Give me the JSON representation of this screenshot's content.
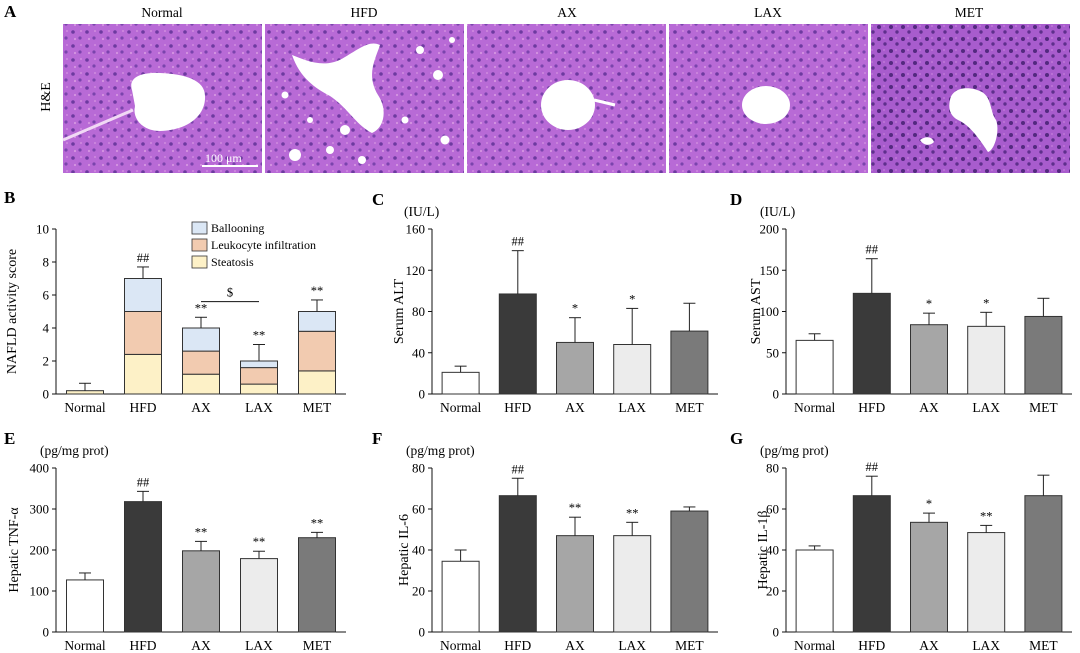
{
  "figure": {
    "panel_A": {
      "letter": "A",
      "row_label": "H&E",
      "scale_bar": "100 μm",
      "images": [
        {
          "label": "Normal"
        },
        {
          "label": "HFD"
        },
        {
          "label": "AX"
        },
        {
          "label": "LAX"
        },
        {
          "label": "MET"
        }
      ]
    }
  },
  "chart_data": [
    {
      "panel": "B",
      "type": "bar",
      "stacked": true,
      "ylabel": "NAFLD activity score",
      "unit": "",
      "ylim": [
        0,
        10
      ],
      "yticks": [
        0,
        2,
        4,
        6,
        8,
        10
      ],
      "categories": [
        "Normal",
        "HFD",
        "AX",
        "LAX",
        "MET"
      ],
      "series": [
        {
          "name": "Steatosis",
          "color": "#fdf1c7",
          "values": [
            0.2,
            2.4,
            1.2,
            0.6,
            1.4
          ]
        },
        {
          "name": "Leukocyte infiltration",
          "color": "#f2cbb0",
          "values": [
            0,
            2.6,
            1.4,
            1.0,
            2.4
          ]
        },
        {
          "name": "Ballooning",
          "color": "#dbe7f5",
          "values": [
            0,
            2.0,
            1.4,
            0.4,
            1.2
          ]
        }
      ],
      "errors": [
        0.45,
        0.7,
        0.65,
        1.0,
        0.7
      ],
      "sig_labels": [
        "",
        "##",
        "**",
        "**",
        "**"
      ],
      "bracket": {
        "from": 2,
        "to": 3,
        "label": "$"
      }
    },
    {
      "panel": "C",
      "type": "bar",
      "ylabel": "Serum ALT",
      "unit": "(IU/L)",
      "ylim": [
        0,
        160
      ],
      "yticks": [
        0,
        40,
        80,
        120,
        160
      ],
      "categories": [
        "Normal",
        "HFD",
        "AX",
        "LAX",
        "MET"
      ],
      "values": [
        21,
        97,
        50,
        48,
        61
      ],
      "errors": [
        6,
        42,
        24,
        35,
        27
      ],
      "colors": [
        "#ffffff",
        "#3a3a3a",
        "#a6a6a6",
        "#ececec",
        "#7a7a7a"
      ],
      "sig_labels": [
        "",
        "##",
        "*",
        "*",
        ""
      ]
    },
    {
      "panel": "D",
      "type": "bar",
      "ylabel": "Serum AST",
      "unit": "(IU/L)",
      "ylim": [
        0,
        200
      ],
      "yticks": [
        0,
        50,
        100,
        150,
        200
      ],
      "categories": [
        "Normal",
        "HFD",
        "AX",
        "LAX",
        "MET"
      ],
      "values": [
        65,
        122,
        84,
        82,
        94
      ],
      "errors": [
        8,
        42,
        14,
        17,
        22
      ],
      "colors": [
        "#ffffff",
        "#3a3a3a",
        "#a6a6a6",
        "#ececec",
        "#7a7a7a"
      ],
      "sig_labels": [
        "",
        "##",
        "*",
        "*",
        ""
      ]
    },
    {
      "panel": "E",
      "type": "bar",
      "ylabel": "Hepatic TNF-α",
      "unit": "(pg/mg prot)",
      "ylim": [
        0,
        400
      ],
      "yticks": [
        0,
        100,
        200,
        300,
        400
      ],
      "categories": [
        "Normal",
        "HFD",
        "AX",
        "LAX",
        "MET"
      ],
      "values": [
        127,
        318,
        198,
        179,
        230
      ],
      "errors": [
        17,
        25,
        23,
        18,
        13
      ],
      "colors": [
        "#ffffff",
        "#3a3a3a",
        "#a6a6a6",
        "#ececec",
        "#7a7a7a"
      ],
      "sig_labels": [
        "",
        "##",
        "**",
        "**",
        "**"
      ]
    },
    {
      "panel": "F",
      "type": "bar",
      "ylabel": "Hepatic IL-6",
      "unit": "(pg/mg prot)",
      "ylim": [
        0,
        80
      ],
      "yticks": [
        0,
        20,
        40,
        60,
        80
      ],
      "categories": [
        "Normal",
        "HFD",
        "AX",
        "LAX",
        "MET"
      ],
      "values": [
        34.5,
        66.5,
        47,
        47,
        59
      ],
      "errors": [
        5.5,
        8.5,
        9,
        6.5,
        2
      ],
      "colors": [
        "#ffffff",
        "#3a3a3a",
        "#a6a6a6",
        "#ececec",
        "#7a7a7a"
      ],
      "sig_labels": [
        "",
        "##",
        "**",
        "**",
        ""
      ]
    },
    {
      "panel": "G",
      "type": "bar",
      "ylabel": "Hepatic IL-1β",
      "unit": "(pg/mg prot)",
      "ylim": [
        0,
        80
      ],
      "yticks": [
        0,
        20,
        40,
        60,
        80
      ],
      "categories": [
        "Normal",
        "HFD",
        "AX",
        "LAX",
        "MET"
      ],
      "values": [
        40,
        66.5,
        53.5,
        48.5,
        66.5
      ],
      "errors": [
        2,
        9.5,
        4.5,
        3.5,
        10
      ],
      "colors": [
        "#ffffff",
        "#3a3a3a",
        "#a6a6a6",
        "#ececec",
        "#7a7a7a"
      ],
      "sig_labels": [
        "",
        "##",
        "*",
        "**",
        ""
      ]
    }
  ]
}
